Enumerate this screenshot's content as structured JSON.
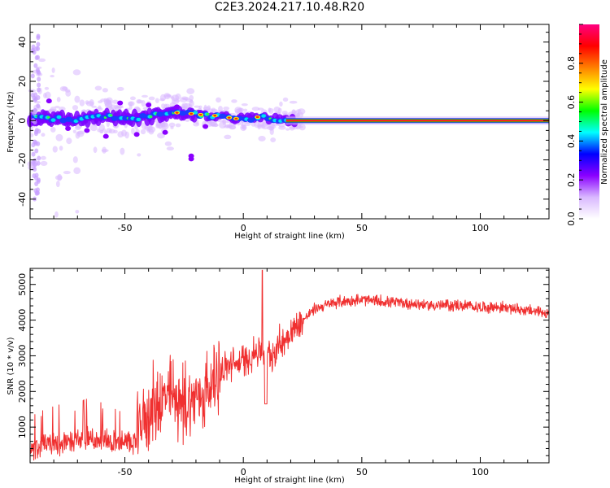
{
  "title": "C2E3.2024.217.10.48.R20",
  "chart_data": [
    {
      "type": "heatmap",
      "xlabel": "Height of straight line (km)",
      "ylabel": "Frequency (Hz)",
      "xlim": [
        -90,
        129
      ],
      "ylim": [
        -50,
        49
      ],
      "xticks": [
        -50,
        0,
        50,
        100
      ],
      "yticks": [
        -40,
        -20,
        0,
        20,
        40
      ],
      "ridge": [
        {
          "x": -88,
          "f": 1.5
        },
        {
          "x": -80,
          "f": 1.0
        },
        {
          "x": -72,
          "f": 0.5
        },
        {
          "x": -64,
          "f": 1.5
        },
        {
          "x": -56,
          "f": 2.0
        },
        {
          "x": -48,
          "f": 1.0
        },
        {
          "x": -40,
          "f": 2.0
        },
        {
          "x": -32,
          "f": 4.0
        },
        {
          "x": -24,
          "f": 3.5
        },
        {
          "x": -16,
          "f": 2.5
        },
        {
          "x": -8,
          "f": 1.5
        },
        {
          "x": 0,
          "f": 1.0
        },
        {
          "x": 8,
          "f": 1.5
        },
        {
          "x": 16,
          "f": 0.5
        },
        {
          "x": 20,
          "f": 0.0
        },
        {
          "x": 129,
          "f": 0.0
        }
      ]
    },
    {
      "type": "line",
      "xlabel": "Height of straight line (km)",
      "ylabel": "SNR (10 * v/v)",
      "xlim": [
        -90,
        129
      ],
      "ylim": [
        0,
        5450
      ],
      "xticks": [
        -50,
        0,
        50,
        100
      ],
      "yticks": [
        1000,
        2000,
        3000,
        4000,
        5000
      ],
      "color": "#f03030",
      "envelope": [
        {
          "x": -90,
          "y": 350
        },
        {
          "x": -80,
          "y": 500
        },
        {
          "x": -70,
          "y": 600
        },
        {
          "x": -60,
          "y": 650
        },
        {
          "x": -52,
          "y": 500
        },
        {
          "x": -46,
          "y": 550
        },
        {
          "x": -42,
          "y": 1200
        },
        {
          "x": -36,
          "y": 1600
        },
        {
          "x": -30,
          "y": 1800
        },
        {
          "x": -24,
          "y": 1500
        },
        {
          "x": -20,
          "y": 1800
        },
        {
          "x": -16,
          "y": 1900
        },
        {
          "x": -12,
          "y": 2300
        },
        {
          "x": -6,
          "y": 2700
        },
        {
          "x": 0,
          "y": 2800
        },
        {
          "x": 6,
          "y": 3100
        },
        {
          "x": 12,
          "y": 3000
        },
        {
          "x": 18,
          "y": 3500
        },
        {
          "x": 24,
          "y": 3900
        },
        {
          "x": 30,
          "y": 4300
        },
        {
          "x": 40,
          "y": 4500
        },
        {
          "x": 50,
          "y": 4550
        },
        {
          "x": 60,
          "y": 4500
        },
        {
          "x": 70,
          "y": 4450
        },
        {
          "x": 80,
          "y": 4400
        },
        {
          "x": 90,
          "y": 4400
        },
        {
          "x": 100,
          "y": 4350
        },
        {
          "x": 110,
          "y": 4350
        },
        {
          "x": 120,
          "y": 4250
        },
        {
          "x": 129,
          "y": 4200
        }
      ],
      "peak": {
        "x": 8,
        "y": 5400
      }
    }
  ],
  "colorbar": {
    "label": "Normalized spectral amplitude",
    "ticks": [
      0.0,
      0.2,
      0.4,
      0.6,
      0.8
    ],
    "range": [
      0,
      1
    ],
    "stops": [
      "#ffffff",
      "#d9b8ff",
      "#8a00ff",
      "#0000ff",
      "#00ffff",
      "#00ff00",
      "#ffff00",
      "#ff8000",
      "#ff0000",
      "#ff0080"
    ]
  }
}
